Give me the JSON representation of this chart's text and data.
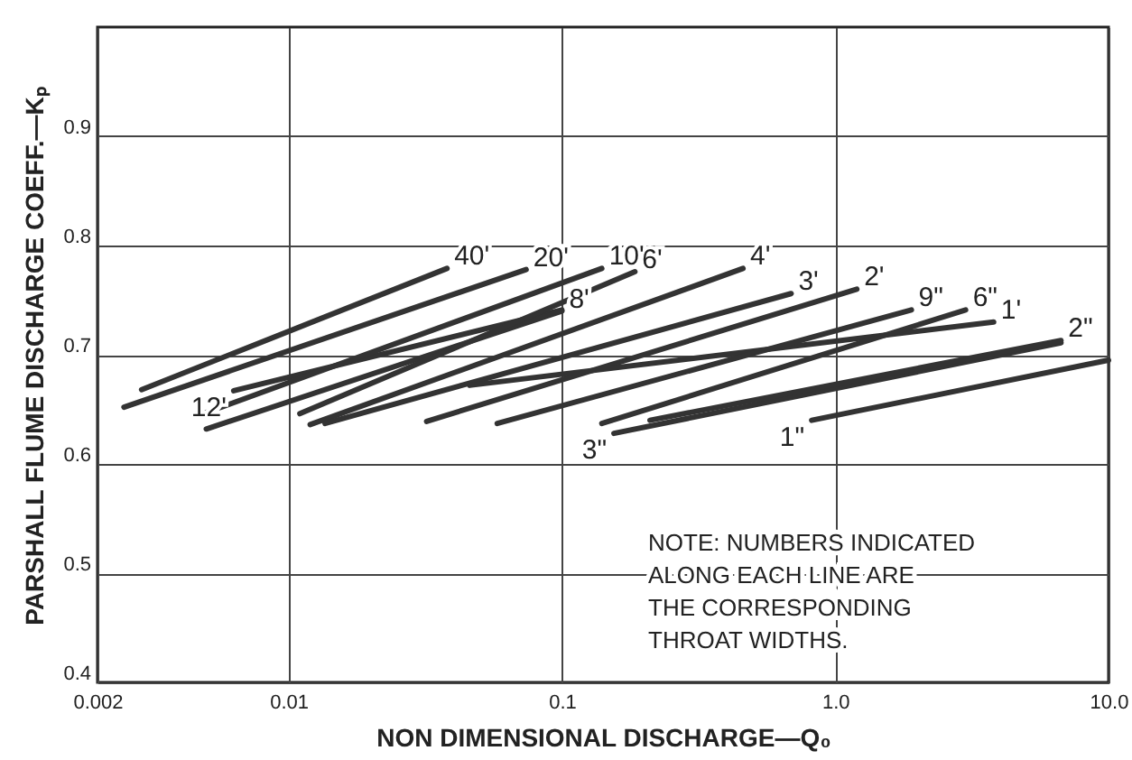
{
  "chart_data": {
    "type": "line",
    "xlabel": "NON DIMENSIONAL DISCHARGE—Q₀",
    "ylabel": "PARSHALL FLUME DISCHARGE COEFF.—Kₚ",
    "log": "x",
    "grid": true,
    "marker": "none",
    "line_style": "solid",
    "xlim": [
      0.002,
      10
    ],
    "xticks": [
      0.002,
      0.01,
      0.1,
      {
        "value": 1,
        "label": "1.0"
      },
      {
        "value": 10,
        "label": "10.0"
      }
    ],
    "ylim": [
      0.4,
      1.0
    ],
    "yticks": [
      0.4,
      0.5,
      0.6,
      0.7,
      0.8,
      0.9
    ],
    "series": [
      {
        "name": "40'",
        "color": "#333333",
        "x": [
          0.0029,
          0.038
        ],
        "values": [
          0.668,
          0.779
        ]
      },
      {
        "name": "20'",
        "color": "#333333",
        "x": [
          0.0025,
          0.074
        ],
        "values": [
          0.652,
          0.778
        ]
      },
      {
        "name": "12'",
        "color": "#333333",
        "x": [
          0.1,
          0.0063
        ],
        "values": [
          0.741,
          0.667
        ]
      },
      {
        "name": "10'",
        "color": "#333333",
        "x": [
          0.005,
          0.14
        ],
        "values": [
          0.647,
          0.779
        ]
      },
      {
        "name": "8'",
        "color": "#333333",
        "x": [
          0.005,
          0.1
        ],
        "values": [
          0.632,
          0.74
        ]
      },
      {
        "name": "6'",
        "color": "#333333",
        "x": [
          0.011,
          0.185
        ],
        "values": [
          0.646,
          0.776
        ]
      },
      {
        "name": "4'",
        "color": "#333333",
        "x": [
          0.012,
          0.46
        ],
        "values": [
          0.636,
          0.779
        ]
      },
      {
        "name": "3'",
        "color": "#333333",
        "x": [
          0.0136,
          0.69
        ],
        "values": [
          0.637,
          0.756
        ]
      },
      {
        "name": "2'",
        "color": "#333333",
        "x": [
          0.032,
          1.2
        ],
        "values": [
          0.639,
          0.76
        ]
      },
      {
        "name": "1'",
        "color": "#333333",
        "x": [
          0.046,
          3.8
        ],
        "values": [
          0.672,
          0.73
        ]
      },
      {
        "name": "9\"",
        "color": "#333333",
        "x": [
          0.058,
          1.9
        ],
        "values": [
          0.637,
          0.741
        ]
      },
      {
        "name": "6\"",
        "color": "#333333",
        "x": [
          0.14,
          3.0
        ],
        "values": [
          0.637,
          0.741
        ]
      },
      {
        "name": "3\"",
        "color": "#333333",
        "x": [
          6.7,
          0.155
        ],
        "values": [
          0.711,
          0.628
        ]
      },
      {
        "name": "2\"",
        "color": "#333333",
        "x": [
          0.21,
          6.7
        ],
        "values": [
          0.64,
          0.713
        ]
      },
      {
        "name": "1\"",
        "color": "#333333",
        "x": [
          10,
          0.82
        ],
        "values": [
          0.695,
          0.64
        ]
      }
    ],
    "annotations": [
      "NOTE: NUMBERS INDICATED\nALONG EACH LINE ARE\nTHE CORRESPONDING\nTHROAT WIDTHS."
    ]
  }
}
